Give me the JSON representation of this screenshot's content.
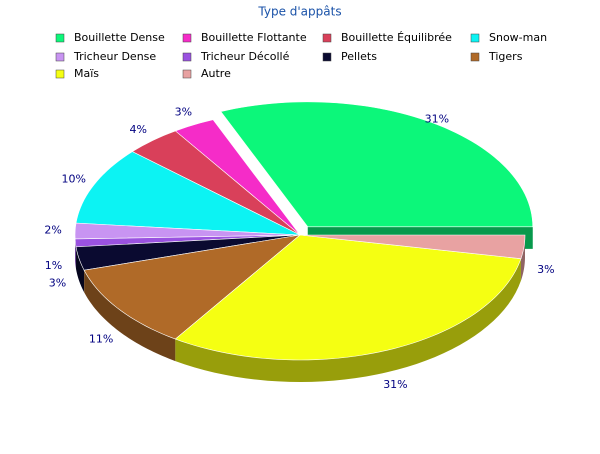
{
  "chart_data": {
    "type": "pie",
    "title": "Type d'appâts",
    "categories": [
      "Bouillette Dense",
      "Bouillette Flottante",
      "Bouillette Équilibrée",
      "Snow-man",
      "Tricheur Dense",
      "Tricheur Décollé",
      "Pellets",
      "Tigers",
      "Maïs",
      "Autre"
    ],
    "values": [
      31,
      3,
      4,
      10,
      2,
      1,
      3,
      11,
      31,
      3
    ],
    "value_labels": [
      "31%",
      "3%",
      "4%",
      "10%",
      "2%",
      "1%",
      "3%",
      "11%",
      "31%",
      "3%"
    ],
    "colors": [
      "#0cf77a",
      "#f52cc8",
      "#d9405a",
      "#0cf3f3",
      "#c894f2",
      "#9a52e0",
      "#0a0a30",
      "#b06a28",
      "#f5ff12",
      "#e8a2a2"
    ],
    "exploded": [
      0
    ]
  }
}
